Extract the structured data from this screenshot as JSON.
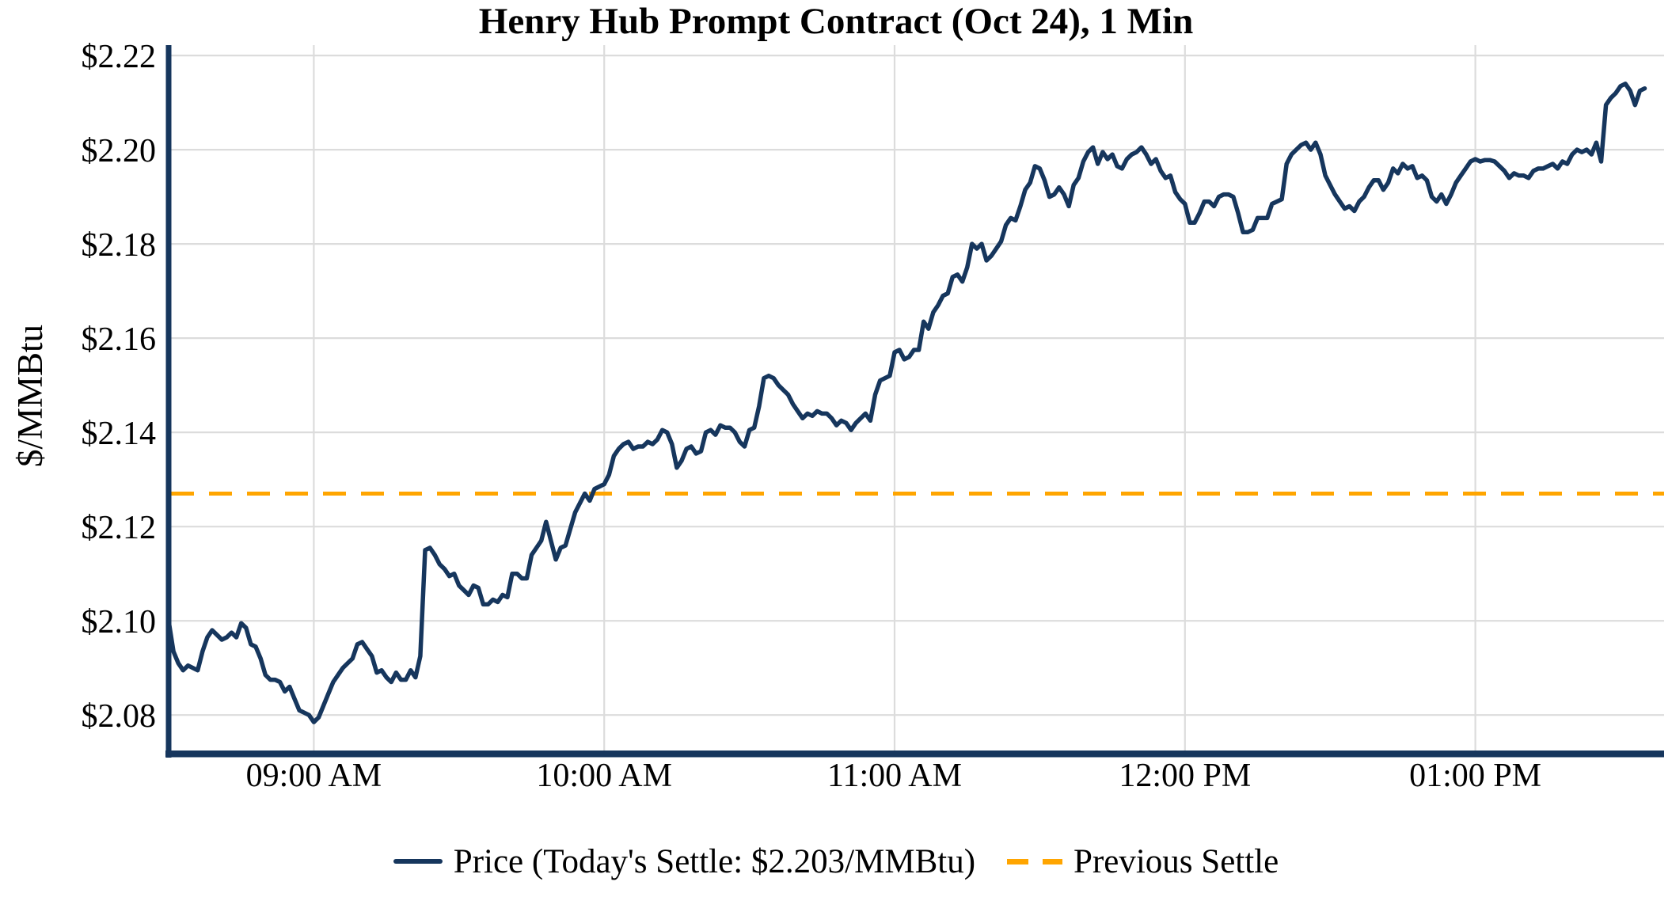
{
  "title": "Henry Hub Prompt Contract (Oct 24), 1 Min",
  "legend": {
    "price_label": "Price (Today's Settle: $2.203/MMBtu)",
    "previous_settle_label": "Previous Settle"
  },
  "colors": {
    "price_line": "#16365D",
    "previous_settle_line": "#FFA500",
    "gridline": "#DCDCDC",
    "axis": "#16365D",
    "text": "#000000",
    "background": "#FFFFFF"
  },
  "chart_data": {
    "type": "line",
    "title": "Henry Hub Prompt Contract (Oct 24), 1 Min",
    "xlabel": "",
    "ylabel": "$/MMBtu",
    "grid": true,
    "legend_position": "bottom-center",
    "todays_settle": 2.203,
    "previous_settle": 2.127,
    "x_axis": {
      "start_time": "08:30 AM",
      "end_time": "01:35 PM",
      "interval_minutes": 1,
      "range_minutes": [
        0,
        309
      ],
      "tick_minutes": [
        30,
        90,
        150,
        210,
        270
      ],
      "tick_labels": [
        "09:00 AM",
        "10:00 AM",
        "11:00 AM",
        "12:00 PM",
        "01:00 PM"
      ]
    },
    "y_axis": {
      "label": "$/MMBtu",
      "range": [
        2.0718,
        2.2222
      ],
      "tick_values": [
        2.08,
        2.1,
        2.12,
        2.14,
        2.16,
        2.18,
        2.2,
        2.22
      ],
      "tick_labels": [
        "$2.08",
        "$2.10",
        "$2.12",
        "$2.14",
        "$2.16",
        "$2.18",
        "$2.20",
        "$2.22"
      ]
    },
    "series": [
      {
        "name": "Price",
        "style": "solid",
        "start_minute": 0,
        "interval_minutes": 1,
        "values": [
          2.1,
          2.0935,
          2.091,
          2.0895,
          2.0905,
          2.09,
          2.0895,
          2.0935,
          2.0965,
          2.098,
          2.097,
          2.096,
          2.0965,
          2.0975,
          2.0965,
          2.0995,
          2.0985,
          2.095,
          2.0945,
          2.092,
          2.0885,
          2.0875,
          2.0875,
          2.087,
          2.085,
          2.086,
          2.0835,
          2.081,
          2.0805,
          2.08,
          2.0785,
          2.0795,
          2.082,
          2.0845,
          2.087,
          2.0885,
          2.09,
          2.091,
          2.092,
          2.095,
          2.0955,
          2.094,
          2.0925,
          2.089,
          2.0895,
          2.088,
          2.087,
          2.089,
          2.0875,
          2.0875,
          2.0895,
          2.088,
          2.0925,
          2.115,
          2.1155,
          2.114,
          2.112,
          2.111,
          2.1095,
          2.11,
          2.1075,
          2.1065,
          2.1055,
          2.1075,
          2.107,
          2.1035,
          2.1035,
          2.1045,
          2.104,
          2.1055,
          2.105,
          2.11,
          2.11,
          2.109,
          2.109,
          2.114,
          2.1155,
          2.117,
          2.121,
          2.117,
          2.113,
          2.1155,
          2.116,
          2.1195,
          2.123,
          2.125,
          2.127,
          2.1255,
          2.128,
          2.1285,
          2.129,
          2.131,
          2.135,
          2.1365,
          2.1375,
          2.138,
          2.1365,
          2.137,
          2.137,
          2.138,
          2.1375,
          2.1385,
          2.1405,
          2.14,
          2.1375,
          2.1325,
          2.134,
          2.1365,
          2.137,
          2.1355,
          2.136,
          2.14,
          2.1405,
          2.1395,
          2.1415,
          2.141,
          2.141,
          2.14,
          2.138,
          2.137,
          2.1405,
          2.141,
          2.1455,
          2.1515,
          2.152,
          2.1515,
          2.15,
          2.149,
          2.148,
          2.146,
          2.1445,
          2.143,
          2.144,
          2.1435,
          2.1445,
          2.144,
          2.144,
          2.143,
          2.1415,
          2.1425,
          2.142,
          2.1405,
          2.142,
          2.143,
          2.144,
          2.1425,
          2.148,
          2.151,
          2.1515,
          2.152,
          2.157,
          2.1575,
          2.1555,
          2.156,
          2.1575,
          2.1575,
          2.1635,
          2.162,
          2.1655,
          2.167,
          2.169,
          2.1695,
          2.173,
          2.1735,
          2.172,
          2.175,
          2.18,
          2.179,
          2.18,
          2.1765,
          2.1775,
          2.179,
          2.1805,
          2.184,
          2.1855,
          2.185,
          2.188,
          2.1915,
          2.193,
          2.1965,
          2.196,
          2.1935,
          2.19,
          2.1905,
          2.192,
          2.1905,
          2.188,
          2.1925,
          2.194,
          2.1975,
          2.1995,
          2.2005,
          2.197,
          2.1995,
          2.198,
          2.199,
          2.1965,
          2.196,
          2.198,
          2.199,
          2.1995,
          2.2005,
          2.199,
          2.197,
          2.198,
          2.1955,
          2.194,
          2.1945,
          2.191,
          2.1895,
          2.1885,
          2.1845,
          2.1845,
          2.1865,
          2.189,
          2.189,
          2.188,
          2.19,
          2.1905,
          2.1905,
          2.19,
          2.1865,
          2.1825,
          2.1825,
          2.183,
          2.1855,
          2.1855,
          2.1855,
          2.1885,
          2.189,
          2.1895,
          2.197,
          2.199,
          2.2,
          2.201,
          2.2015,
          2.2,
          2.2015,
          2.199,
          2.1945,
          2.1925,
          2.1905,
          2.189,
          2.1875,
          2.188,
          2.187,
          2.189,
          2.19,
          2.192,
          2.1935,
          2.1935,
          2.1915,
          2.193,
          2.196,
          2.195,
          2.197,
          2.196,
          2.1965,
          2.194,
          2.1945,
          2.1935,
          2.19,
          2.189,
          2.1905,
          2.1885,
          2.1905,
          2.193,
          2.1945,
          2.196,
          2.1975,
          2.198,
          2.1975,
          2.1978,
          2.1978,
          2.1975,
          2.1965,
          2.1955,
          2.194,
          2.195,
          2.1945,
          2.1945,
          2.194,
          2.1955,
          2.196,
          2.196,
          2.1965,
          2.197,
          2.196,
          2.1975,
          2.197,
          2.199,
          2.2,
          2.1995,
          2.2,
          2.199,
          2.2015,
          2.1975,
          2.2095,
          2.211,
          2.212,
          2.2135,
          2.214,
          2.2125,
          2.2095,
          2.2125,
          2.213
        ]
      },
      {
        "name": "Previous Settle",
        "style": "dashed",
        "constant_value": 2.127
      }
    ]
  }
}
